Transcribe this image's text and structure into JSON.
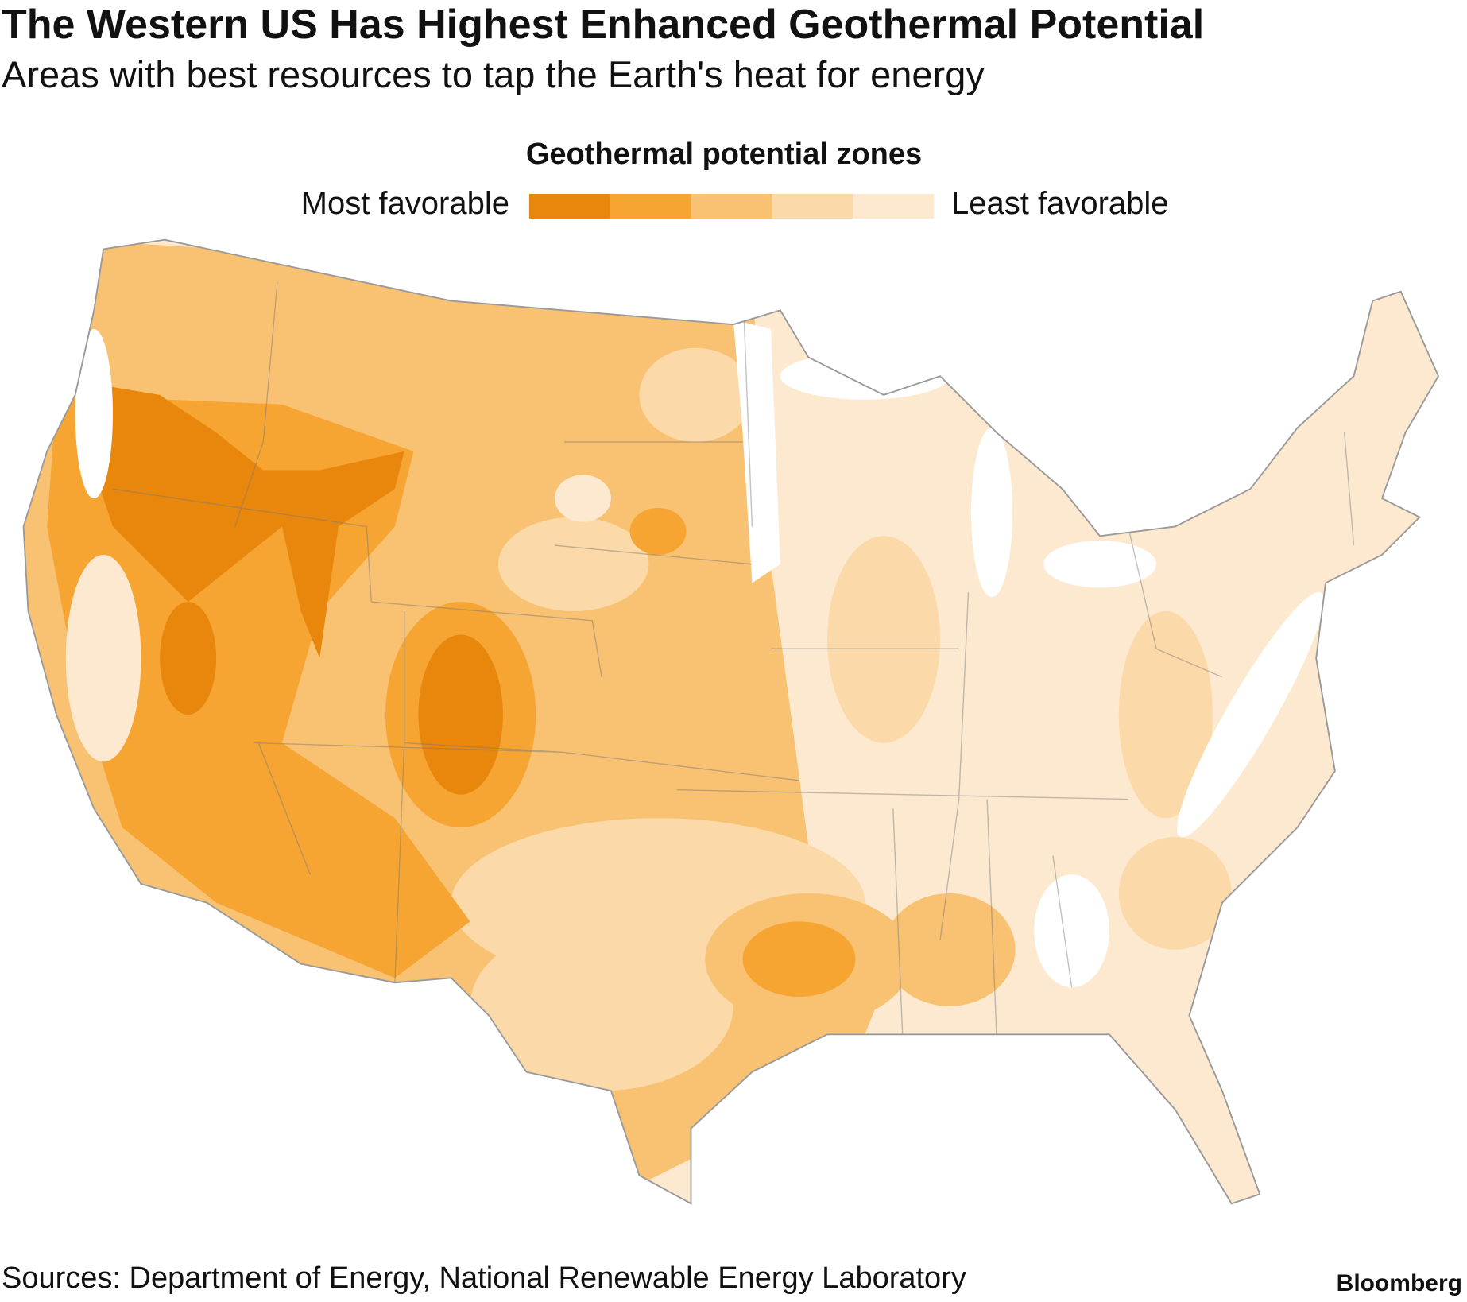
{
  "title": "The Western US Has Highest Enhanced Geothermal Potential",
  "subtitle": "Areas with best resources to tap the Earth's heat for energy",
  "legend": {
    "title": "Geothermal potential zones",
    "low_label": "Most favorable",
    "high_label": "Least favorable",
    "colors": [
      "#e8870b",
      "#f6a533",
      "#f9c273",
      "#fcd9a9",
      "#fde9d0"
    ]
  },
  "source": "Sources: Department of Energy, National Renewable Energy Laboratory",
  "brand": "Bloomberg"
}
